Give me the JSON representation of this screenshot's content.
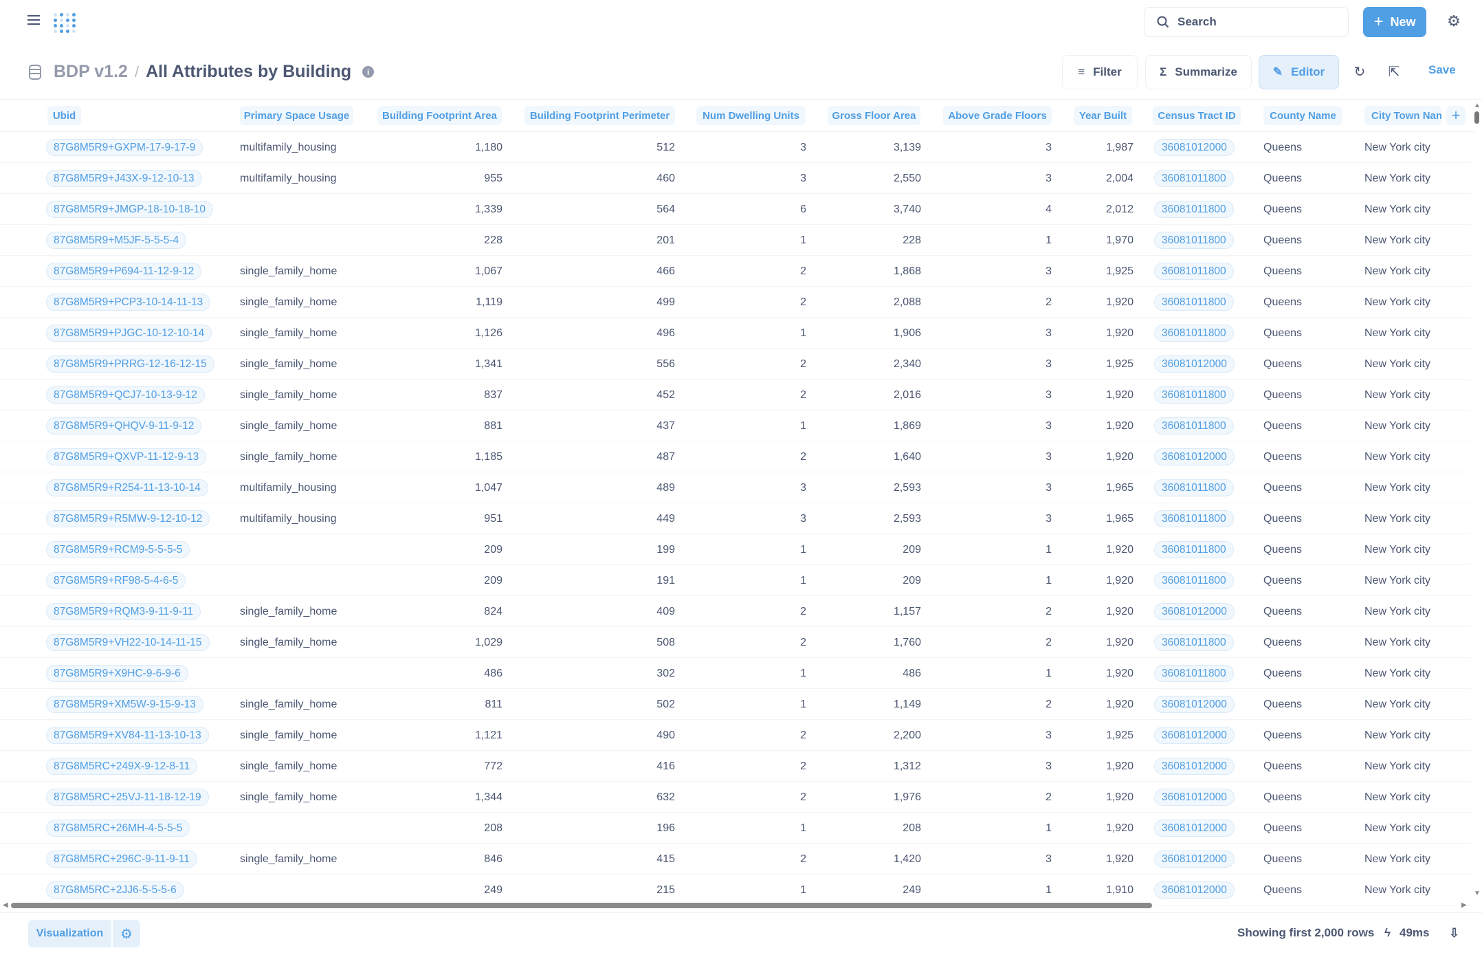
{
  "header": {
    "search_label": "Search",
    "new_label": "New"
  },
  "breadcrumb": {
    "database": "BDP v1.2",
    "separator": "/",
    "title": "All Attributes by Building"
  },
  "toolbar": {
    "filter": "Filter",
    "summarize": "Summarize",
    "editor": "Editor",
    "save": "Save"
  },
  "columns": [
    "Ubid",
    "Primary Space Usage",
    "Building Footprint Area",
    "Building Footprint Perimeter",
    "Num Dwelling Units",
    "Gross Floor Area",
    "Above Grade Floors",
    "Year Built",
    "Census Tract ID",
    "County Name",
    "City Town Nan"
  ],
  "rows": [
    [
      "87G8M5R9+GXPM-17-9-17-9",
      "multifamily_housing",
      "1,180",
      "512",
      "3",
      "3,139",
      "3",
      "1,987",
      "36081012000",
      "Queens",
      "New York city"
    ],
    [
      "87G8M5R9+J43X-9-12-10-13",
      "multifamily_housing",
      "955",
      "460",
      "3",
      "2,550",
      "3",
      "2,004",
      "36081011800",
      "Queens",
      "New York city"
    ],
    [
      "87G8M5R9+JMGP-18-10-18-10",
      "",
      "1,339",
      "564",
      "6",
      "3,740",
      "4",
      "2,012",
      "36081011800",
      "Queens",
      "New York city"
    ],
    [
      "87G8M5R9+M5JF-5-5-5-4",
      "",
      "228",
      "201",
      "1",
      "228",
      "1",
      "1,970",
      "36081011800",
      "Queens",
      "New York city"
    ],
    [
      "87G8M5R9+P694-11-12-9-12",
      "single_family_home",
      "1,067",
      "466",
      "2",
      "1,868",
      "3",
      "1,925",
      "36081011800",
      "Queens",
      "New York city"
    ],
    [
      "87G8M5R9+PCP3-10-14-11-13",
      "single_family_home",
      "1,119",
      "499",
      "2",
      "2,088",
      "2",
      "1,920",
      "36081011800",
      "Queens",
      "New York city"
    ],
    [
      "87G8M5R9+PJGC-10-12-10-14",
      "single_family_home",
      "1,126",
      "496",
      "1",
      "1,906",
      "3",
      "1,920",
      "36081011800",
      "Queens",
      "New York city"
    ],
    [
      "87G8M5R9+PRRG-12-16-12-15",
      "single_family_home",
      "1,341",
      "556",
      "2",
      "2,340",
      "3",
      "1,925",
      "36081012000",
      "Queens",
      "New York city"
    ],
    [
      "87G8M5R9+QCJ7-10-13-9-12",
      "single_family_home",
      "837",
      "452",
      "2",
      "2,016",
      "3",
      "1,920",
      "36081011800",
      "Queens",
      "New York city"
    ],
    [
      "87G8M5R9+QHQV-9-11-9-12",
      "single_family_home",
      "881",
      "437",
      "1",
      "1,869",
      "3",
      "1,920",
      "36081011800",
      "Queens",
      "New York city"
    ],
    [
      "87G8M5R9+QXVP-11-12-9-13",
      "single_family_home",
      "1,185",
      "487",
      "2",
      "1,640",
      "3",
      "1,920",
      "36081012000",
      "Queens",
      "New York city"
    ],
    [
      "87G8M5R9+R254-11-13-10-14",
      "multifamily_housing",
      "1,047",
      "489",
      "3",
      "2,593",
      "3",
      "1,965",
      "36081011800",
      "Queens",
      "New York city"
    ],
    [
      "87G8M5R9+R5MW-9-12-10-12",
      "multifamily_housing",
      "951",
      "449",
      "3",
      "2,593",
      "3",
      "1,965",
      "36081011800",
      "Queens",
      "New York city"
    ],
    [
      "87G8M5R9+RCM9-5-5-5-5",
      "",
      "209",
      "199",
      "1",
      "209",
      "1",
      "1,920",
      "36081011800",
      "Queens",
      "New York city"
    ],
    [
      "87G8M5R9+RF98-5-4-6-5",
      "",
      "209",
      "191",
      "1",
      "209",
      "1",
      "1,920",
      "36081011800",
      "Queens",
      "New York city"
    ],
    [
      "87G8M5R9+RQM3-9-11-9-11",
      "single_family_home",
      "824",
      "409",
      "2",
      "1,157",
      "2",
      "1,920",
      "36081012000",
      "Queens",
      "New York city"
    ],
    [
      "87G8M5R9+VH22-10-14-11-15",
      "single_family_home",
      "1,029",
      "508",
      "2",
      "1,760",
      "2",
      "1,920",
      "36081011800",
      "Queens",
      "New York city"
    ],
    [
      "87G8M5R9+X9HC-9-6-9-6",
      "",
      "486",
      "302",
      "1",
      "486",
      "1",
      "1,920",
      "36081011800",
      "Queens",
      "New York city"
    ],
    [
      "87G8M5R9+XM5W-9-15-9-13",
      "single_family_home",
      "811",
      "502",
      "1",
      "1,149",
      "2",
      "1,920",
      "36081012000",
      "Queens",
      "New York city"
    ],
    [
      "87G8M5R9+XV84-11-13-10-13",
      "single_family_home",
      "1,121",
      "490",
      "2",
      "2,200",
      "3",
      "1,925",
      "36081012000",
      "Queens",
      "New York city"
    ],
    [
      "87G8M5RC+249X-9-12-8-11",
      "single_family_home",
      "772",
      "416",
      "2",
      "1,312",
      "3",
      "1,920",
      "36081012000",
      "Queens",
      "New York city"
    ],
    [
      "87G8M5RC+25VJ-11-18-12-19",
      "single_family_home",
      "1,344",
      "632",
      "2",
      "1,976",
      "2",
      "1,920",
      "36081012000",
      "Queens",
      "New York city"
    ],
    [
      "87G8M5RC+26MH-4-5-5-5",
      "",
      "208",
      "196",
      "1",
      "208",
      "1",
      "1,920",
      "36081012000",
      "Queens",
      "New York city"
    ],
    [
      "87G8M5RC+296C-9-11-9-11",
      "single_family_home",
      "846",
      "415",
      "2",
      "1,420",
      "3",
      "1,920",
      "36081012000",
      "Queens",
      "New York city"
    ],
    [
      "87G8M5RC+2JJ6-5-5-5-6",
      "",
      "249",
      "215",
      "1",
      "249",
      "1",
      "1,910",
      "36081012000",
      "Queens",
      "New York city"
    ]
  ],
  "footer": {
    "visualization": "Visualization",
    "row_count": "Showing first 2,000 rows",
    "timing": "49ms"
  },
  "colors": {
    "accent": "#509ee3",
    "text": "#4c5773"
  }
}
